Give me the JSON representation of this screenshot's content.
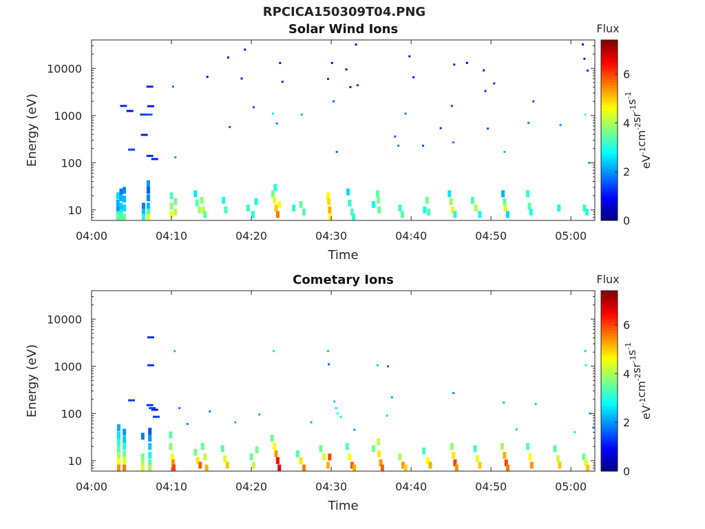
{
  "figure": {
    "title": "RPCICA150309T04.PNG"
  },
  "chart_data": [
    {
      "type": "heatmap",
      "title": "Solar Wind Ions",
      "xlabel": "Time",
      "ylabel": "Energy (eV)",
      "x_ticks": [
        "04:00",
        "04:10",
        "04:20",
        "04:30",
        "04:40",
        "04:50",
        "05:00"
      ],
      "xlim_minutes": [
        0,
        63
      ],
      "y_scale": "log",
      "y_ticks": [
        "10",
        "100",
        "1000",
        "10000"
      ],
      "ylim": [
        6,
        40000
      ],
      "colorbar": {
        "title": "Flux",
        "label": "eV-1cm-2sr-1s-1",
        "label_parts": [
          [
            "eV",
            "-1"
          ],
          [
            "cm",
            "-2"
          ],
          [
            "sr",
            "-1"
          ],
          [
            "s",
            "-1"
          ]
        ],
        "ticks": [
          "0",
          "2",
          "4",
          "6"
        ],
        "range": [
          0,
          7.4
        ],
        "colormap": "jet"
      },
      "cells": [
        [
          3.3,
          20,
          2.6
        ],
        [
          3.3,
          14,
          2.2
        ],
        [
          3.3,
          10,
          2.0
        ],
        [
          3.3,
          8,
          3.3
        ],
        [
          3.3,
          7,
          3.5
        ],
        [
          3.7,
          24,
          1.8
        ],
        [
          3.7,
          18,
          2.2
        ],
        [
          3.7,
          12,
          2.4
        ],
        [
          3.7,
          8.5,
          2.8
        ],
        [
          3.7,
          7,
          3.4
        ],
        [
          4.1,
          26,
          1.9
        ],
        [
          4.1,
          17,
          2.3
        ],
        [
          4.1,
          11,
          2.5
        ],
        [
          4.1,
          7,
          3.6
        ],
        [
          6.5,
          12,
          1.8
        ],
        [
          6.5,
          9,
          2.3
        ],
        [
          6.5,
          7,
          2.9
        ],
        [
          7.1,
          36,
          2.0
        ],
        [
          7.1,
          26,
          1.6
        ],
        [
          7.1,
          18,
          1.9
        ],
        [
          7.1,
          12,
          2.3
        ],
        [
          7.1,
          9,
          3.2
        ],
        [
          7.1,
          7,
          4.5
        ],
        [
          10.0,
          20,
          3.3
        ],
        [
          10.0,
          12,
          3.8
        ],
        [
          10.0,
          8,
          4.4
        ],
        [
          10.5,
          15,
          3.6
        ],
        [
          10.5,
          9,
          4.1
        ],
        [
          13.0,
          22,
          2.6
        ],
        [
          13.2,
          14,
          3.4
        ],
        [
          13.5,
          10,
          4.0
        ],
        [
          13.8,
          16,
          3.8
        ],
        [
          14.0,
          10,
          4.2
        ],
        [
          14.2,
          8,
          3.5
        ],
        [
          16.5,
          16,
          2.9
        ],
        [
          16.8,
          10,
          3.3
        ],
        [
          19.6,
          11,
          3.2
        ],
        [
          20.2,
          8,
          3.0
        ],
        [
          20.6,
          15,
          2.9
        ],
        [
          22.7,
          22,
          3.6
        ],
        [
          22.9,
          16,
          4.4
        ],
        [
          23.1,
          11,
          5.0
        ],
        [
          23.3,
          8,
          5.6
        ],
        [
          23.0,
          30,
          3.0
        ],
        [
          23.5,
          13,
          4.6
        ],
        [
          25.3,
          11,
          3.0
        ],
        [
          26.2,
          13,
          3.5
        ],
        [
          26.6,
          9,
          3.4
        ],
        [
          29.6,
          20,
          4.6
        ],
        [
          29.7,
          15,
          4.9
        ],
        [
          29.8,
          10,
          5.2
        ],
        [
          29.9,
          7,
          4.6
        ],
        [
          32.1,
          24,
          2.5
        ],
        [
          32.3,
          14,
          3.1
        ],
        [
          32.6,
          9,
          3.4
        ],
        [
          32.8,
          7,
          3.1
        ],
        [
          35.3,
          13,
          2.8
        ],
        [
          35.8,
          22,
          3.4
        ],
        [
          35.9,
          16,
          3.7
        ],
        [
          36.0,
          10,
          3.5
        ],
        [
          38.6,
          11,
          3.2
        ],
        [
          38.9,
          8,
          3.4
        ],
        [
          41.7,
          10,
          2.9
        ],
        [
          42.0,
          16,
          3.6
        ],
        [
          42.2,
          9,
          3.4
        ],
        [
          44.8,
          22,
          2.6
        ],
        [
          45.0,
          15,
          3.9
        ],
        [
          45.2,
          10,
          4.7
        ],
        [
          45.5,
          8,
          3.0
        ],
        [
          47.7,
          16,
          3.3
        ],
        [
          48.1,
          11,
          4.0
        ],
        [
          48.6,
          8,
          2.9
        ],
        [
          51.5,
          22,
          2.2
        ],
        [
          51.7,
          15,
          3.5
        ],
        [
          51.8,
          11,
          4.3
        ],
        [
          52.1,
          8,
          2.5
        ],
        [
          54.6,
          22,
          3.1
        ],
        [
          54.8,
          12,
          3.4
        ],
        [
          55.0,
          9,
          3.0
        ],
        [
          58.5,
          11,
          2.9
        ],
        [
          61.7,
          11,
          3.2
        ],
        [
          62.0,
          9,
          3.0
        ]
      ],
      "points": [
        [
          4.0,
          1600,
          1.2
        ],
        [
          4.8,
          1250,
          1.0
        ],
        [
          5.0,
          190,
          1.4
        ],
        [
          6.5,
          1050,
          1.4
        ],
        [
          6.6,
          390,
          1.2
        ],
        [
          7.3,
          4100,
          1.2
        ],
        [
          7.4,
          1580,
          1.1
        ],
        [
          7.2,
          1050,
          1.6
        ],
        [
          7.3,
          140,
          1.2
        ],
        [
          7.9,
          120,
          1.1
        ],
        [
          10.2,
          4100,
          1.8
        ],
        [
          10.5,
          130,
          2.0
        ],
        [
          14.5,
          6600,
          1.0
        ],
        [
          17.1,
          17000,
          0.9
        ],
        [
          17.3,
          570,
          1.6
        ],
        [
          18.8,
          6100,
          1.0
        ],
        [
          19.2,
          25000,
          0.9
        ],
        [
          20.3,
          1500,
          1.6
        ],
        [
          22.7,
          1100,
          2.6
        ],
        [
          23.2,
          680,
          1.8
        ],
        [
          23.6,
          13000,
          1.0
        ],
        [
          23.9,
          5200,
          1.1
        ],
        [
          26.3,
          1050,
          2.2
        ],
        [
          29.6,
          6000,
          1.3
        ],
        [
          30.1,
          13000,
          1.0
        ],
        [
          30.3,
          2000,
          1.7
        ],
        [
          30.7,
          170,
          1.7
        ],
        [
          31.9,
          9500,
          1.0
        ],
        [
          32.4,
          4000,
          1.1
        ],
        [
          33.1,
          32000,
          1.0
        ],
        [
          33.3,
          4400,
          1.2
        ],
        [
          38.0,
          360,
          1.6
        ],
        [
          38.4,
          230,
          1.9
        ],
        [
          39.3,
          1100,
          1.9
        ],
        [
          39.8,
          18000,
          1.1
        ],
        [
          40.3,
          6500,
          1.1
        ],
        [
          41.5,
          230,
          1.6
        ],
        [
          43.7,
          540,
          1.3
        ],
        [
          45.1,
          1600,
          1.4
        ],
        [
          45.3,
          270,
          1.8
        ],
        [
          45.4,
          12000,
          1.1
        ],
        [
          47.0,
          13000,
          0.9
        ],
        [
          49.1,
          9100,
          1.0
        ],
        [
          49.3,
          3300,
          1.3
        ],
        [
          49.6,
          530,
          1.5
        ],
        [
          50.4,
          4800,
          1.2
        ],
        [
          51.7,
          170,
          2.2
        ],
        [
          54.7,
          700,
          1.8
        ],
        [
          55.3,
          2000,
          1.5
        ],
        [
          58.7,
          630,
          2.0
        ],
        [
          61.5,
          32000,
          0.9
        ],
        [
          61.7,
          16000,
          1.0
        ],
        [
          62.1,
          9000,
          1.2
        ],
        [
          61.8,
          1050,
          3.4
        ],
        [
          62.3,
          100,
          1.9
        ]
      ]
    },
    {
      "type": "heatmap",
      "title": "Cometary Ions",
      "xlabel": "Time",
      "ylabel": "Energy (eV)",
      "x_ticks": [
        "04:00",
        "04:10",
        "04:20",
        "04:30",
        "04:40",
        "04:50",
        "05:00"
      ],
      "xlim_minutes": [
        0,
        63
      ],
      "y_scale": "log",
      "y_ticks": [
        "10",
        "100",
        "1000",
        "10000"
      ],
      "ylim": [
        6,
        40000
      ],
      "colorbar": {
        "title": "Flux",
        "label": "eV-1cm-2sr-1s-1",
        "label_parts": [
          [
            "eV",
            "-1"
          ],
          [
            "cm",
            "-2"
          ],
          [
            "sr",
            "-1"
          ],
          [
            "s",
            "-1"
          ]
        ],
        "ticks": [
          "0",
          "2",
          "4",
          "6"
        ],
        "range": [
          0,
          7.4
        ],
        "colormap": "jet"
      },
      "cells": [
        [
          3.4,
          50,
          2.2
        ],
        [
          3.4,
          35,
          2.6
        ],
        [
          3.4,
          25,
          3.0
        ],
        [
          3.4,
          18,
          3.4
        ],
        [
          3.4,
          13,
          4.0
        ],
        [
          3.4,
          9.5,
          4.6
        ],
        [
          3.4,
          7,
          5.4
        ],
        [
          4.1,
          40,
          2.0
        ],
        [
          4.1,
          28,
          2.4
        ],
        [
          4.1,
          20,
          3.0
        ],
        [
          4.1,
          14,
          3.6
        ],
        [
          4.1,
          10,
          4.4
        ],
        [
          4.1,
          7,
          5.6
        ],
        [
          6.4,
          33,
          1.8
        ],
        [
          6.4,
          12,
          3.6
        ],
        [
          6.4,
          9,
          4.0
        ],
        [
          6.4,
          7,
          4.4
        ],
        [
          7.3,
          42,
          1.5
        ],
        [
          7.3,
          30,
          2.0
        ],
        [
          7.3,
          20,
          2.4
        ],
        [
          7.3,
          13,
          2.9
        ],
        [
          7.3,
          9,
          3.4
        ],
        [
          7.3,
          7,
          4.0
        ],
        [
          9.9,
          35,
          3.4
        ],
        [
          9.9,
          20,
          3.8
        ],
        [
          10.1,
          12,
          4.6
        ],
        [
          10.2,
          9,
          5.4
        ],
        [
          10.3,
          7,
          6.0
        ],
        [
          13.0,
          15,
          3.6
        ],
        [
          13.3,
          10,
          4.8
        ],
        [
          13.6,
          8,
          5.8
        ],
        [
          13.9,
          20,
          3.5
        ],
        [
          14.2,
          12,
          4.2
        ],
        [
          14.4,
          7,
          5.2
        ],
        [
          16.4,
          18,
          3.4
        ],
        [
          16.7,
          11,
          4.4
        ],
        [
          17.0,
          8,
          5.0
        ],
        [
          20.0,
          12,
          3.5
        ],
        [
          20.3,
          8,
          4.2
        ],
        [
          20.7,
          17,
          3.6
        ],
        [
          22.6,
          30,
          3.6
        ],
        [
          22.9,
          20,
          4.6
        ],
        [
          23.1,
          14,
          5.4
        ],
        [
          23.3,
          10,
          6.4
        ],
        [
          23.5,
          7,
          6.6
        ],
        [
          25.8,
          14,
          3.4
        ],
        [
          26.2,
          10,
          4.8
        ],
        [
          26.6,
          7,
          5.6
        ],
        [
          28.7,
          18,
          3.6
        ],
        [
          29.1,
          12,
          4.4
        ],
        [
          29.6,
          8,
          5.2
        ],
        [
          29.8,
          12,
          6.0
        ],
        [
          32.0,
          20,
          3.4
        ],
        [
          32.3,
          12,
          4.6
        ],
        [
          32.6,
          8,
          5.8
        ],
        [
          32.9,
          7,
          5.2
        ],
        [
          35.3,
          18,
          3.6
        ],
        [
          35.9,
          25,
          4.2
        ],
        [
          36.0,
          14,
          4.8
        ],
        [
          36.2,
          9,
          5.4
        ],
        [
          36.4,
          7,
          5.8
        ],
        [
          38.6,
          12,
          4.0
        ],
        [
          39.0,
          8,
          5.4
        ],
        [
          39.3,
          7,
          5.0
        ],
        [
          41.6,
          16,
          3.2
        ],
        [
          42.1,
          10,
          4.6
        ],
        [
          42.4,
          8,
          5.2
        ],
        [
          45.1,
          20,
          3.8
        ],
        [
          45.3,
          13,
          4.8
        ],
        [
          45.5,
          9,
          6.0
        ],
        [
          45.7,
          7,
          5.4
        ],
        [
          48.0,
          18,
          3.2
        ],
        [
          48.3,
          11,
          4.4
        ],
        [
          48.6,
          8,
          5.0
        ],
        [
          51.4,
          20,
          4.0
        ],
        [
          51.7,
          13,
          5.2
        ],
        [
          51.9,
          9,
          6.0
        ],
        [
          52.1,
          7,
          5.6
        ],
        [
          54.6,
          20,
          3.4
        ],
        [
          54.9,
          12,
          4.6
        ],
        [
          55.1,
          8,
          5.4
        ],
        [
          58.0,
          18,
          3.4
        ],
        [
          58.4,
          11,
          4.2
        ],
        [
          58.6,
          8,
          5.0
        ],
        [
          61.6,
          12,
          3.6
        ],
        [
          61.9,
          9,
          4.4
        ],
        [
          62.1,
          7,
          5.0
        ]
      ],
      "points": [
        [
          5.0,
          190,
          1.4
        ],
        [
          7.4,
          4100,
          1.2
        ],
        [
          7.4,
          1050,
          1.3
        ],
        [
          7.3,
          150,
          1.3
        ],
        [
          7.6,
          130,
          1.5
        ],
        [
          7.9,
          120,
          1.1
        ],
        [
          8.1,
          85,
          1.3
        ],
        [
          10.4,
          2100,
          2.4
        ],
        [
          11.0,
          130,
          1.8
        ],
        [
          12.0,
          60,
          2.0
        ],
        [
          14.8,
          110,
          1.8
        ],
        [
          18.0,
          65,
          2.2
        ],
        [
          21.0,
          95,
          2.2
        ],
        [
          22.8,
          2100,
          2.6
        ],
        [
          27.5,
          65,
          2.2
        ],
        [
          29.6,
          2100,
          2.4
        ],
        [
          29.7,
          1100,
          1.6
        ],
        [
          30.4,
          180,
          2.4
        ],
        [
          30.6,
          130,
          2.6
        ],
        [
          30.8,
          100,
          2.8
        ],
        [
          31.2,
          85,
          2.6
        ],
        [
          32.9,
          45,
          2.0
        ],
        [
          35.8,
          1050,
          2.4
        ],
        [
          37.1,
          1000,
          1.5
        ],
        [
          37.6,
          220,
          2.2
        ],
        [
          37.0,
          90,
          2.5
        ],
        [
          45.3,
          270,
          1.9
        ],
        [
          51.6,
          170,
          2.3
        ],
        [
          53.2,
          46,
          2.4
        ],
        [
          55.6,
          160,
          2.4
        ],
        [
          60.5,
          40,
          2.6
        ],
        [
          61.8,
          2100,
          2.5
        ],
        [
          61.9,
          1050,
          2.8
        ],
        [
          62.4,
          100,
          2.0
        ],
        [
          62.8,
          50,
          2.4
        ]
      ]
    }
  ]
}
